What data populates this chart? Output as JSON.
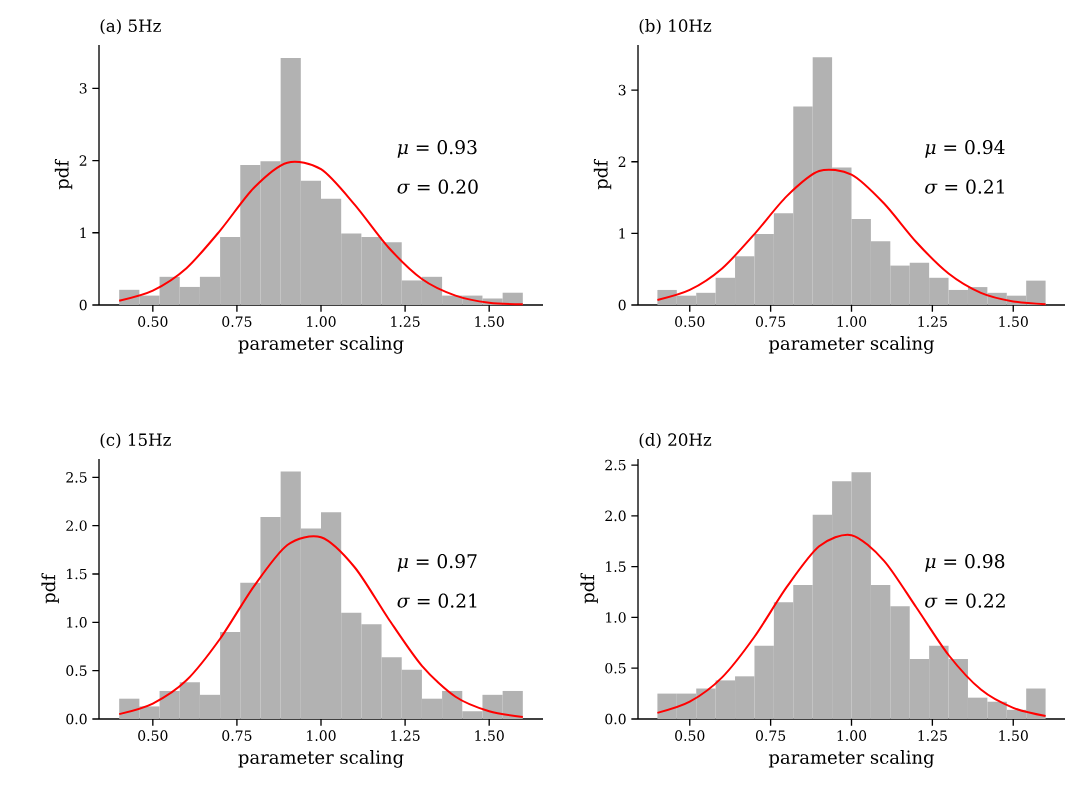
{
  "chart_data": [
    {
      "type": "histogram",
      "title": "(a) 5Hz",
      "xlabel": "parameter scaling",
      "ylabel": "pdf",
      "annotations": [
        "*μ* = 0.93",
        "*σ* = 0.20"
      ],
      "xlim": [
        0.34,
        1.66
      ],
      "ylim": [
        0,
        3.6
      ],
      "xticks": [
        {
          "value": 0.5,
          "label": "0.50"
        },
        {
          "value": 0.75,
          "label": "0.75"
        },
        {
          "value": 1.0,
          "label": "1.00"
        },
        {
          "value": 1.25,
          "label": "1.25"
        },
        {
          "value": 1.5,
          "label": "1.50"
        }
      ],
      "yticks": [
        0,
        1,
        2,
        3
      ],
      "series": [
        {
          "type": "histogram",
          "color": "#b2b2b2",
          "bins": [
            0.4,
            0.46,
            0.52,
            0.58,
            0.64,
            0.7,
            0.76,
            0.82,
            0.88,
            0.94,
            1.0,
            1.06,
            1.12,
            1.18,
            1.24,
            1.3,
            1.36,
            1.42,
            1.48,
            1.54,
            1.6
          ],
          "values": [
            0.21,
            0.13,
            0.39,
            0.25,
            0.39,
            0.94,
            1.94,
            1.99,
            3.42,
            1.72,
            1.47,
            0.99,
            0.94,
            0.87,
            0.34,
            0.39,
            0.13,
            0.13,
            0.09,
            0.17
          ]
        },
        {
          "type": "line",
          "color": "#ff0000",
          "x": [
            0.4,
            0.5,
            0.6,
            0.7,
            0.8,
            0.9,
            1.0,
            1.1,
            1.2,
            1.3,
            1.4,
            1.5,
            1.6
          ],
          "values": [
            0.06,
            0.2,
            0.51,
            1.03,
            1.62,
            1.97,
            1.88,
            1.39,
            0.8,
            0.36,
            0.13,
            0.03,
            0.01
          ]
        }
      ]
    },
    {
      "type": "histogram",
      "title": "(b) 10Hz",
      "xlabel": "parameter scaling",
      "ylabel": "pdf",
      "annotations": [
        "*μ* = 0.94",
        "*σ* = 0.21"
      ],
      "xlim": [
        0.34,
        1.66
      ],
      "ylim": [
        0,
        3.63
      ],
      "xticks": [
        {
          "value": 0.5,
          "label": "0.50"
        },
        {
          "value": 0.75,
          "label": "0.75"
        },
        {
          "value": 1.0,
          "label": "1.00"
        },
        {
          "value": 1.25,
          "label": "1.25"
        },
        {
          "value": 1.5,
          "label": "1.50"
        }
      ],
      "yticks": [
        0,
        1,
        2,
        3
      ],
      "series": [
        {
          "type": "histogram",
          "color": "#b2b2b2",
          "bins": [
            0.4,
            0.46,
            0.52,
            0.58,
            0.64,
            0.7,
            0.76,
            0.82,
            0.88,
            0.94,
            1.0,
            1.06,
            1.12,
            1.18,
            1.24,
            1.3,
            1.36,
            1.42,
            1.48,
            1.54,
            1.6
          ],
          "values": [
            0.21,
            0.13,
            0.17,
            0.38,
            0.68,
            0.99,
            1.28,
            2.77,
            3.46,
            1.92,
            1.2,
            0.89,
            0.55,
            0.59,
            0.38,
            0.21,
            0.25,
            0.17,
            0.13,
            0.34
          ]
        },
        {
          "type": "line",
          "color": "#ff0000",
          "x": [
            0.4,
            0.5,
            0.6,
            0.7,
            0.8,
            0.9,
            1.0,
            1.1,
            1.2,
            1.3,
            1.4,
            1.5,
            1.6
          ],
          "values": [
            0.07,
            0.21,
            0.51,
            0.99,
            1.52,
            1.87,
            1.82,
            1.42,
            0.88,
            0.44,
            0.17,
            0.05,
            0.01
          ]
        }
      ]
    },
    {
      "type": "histogram",
      "title": "(c) 15Hz",
      "xlabel": "parameter scaling",
      "ylabel": "pdf",
      "annotations": [
        "*μ* = 0.97",
        "*σ* = 0.21"
      ],
      "xlim": [
        0.34,
        1.66
      ],
      "ylim": [
        0,
        2.69
      ],
      "xticks": [
        {
          "value": 0.5,
          "label": "0.50"
        },
        {
          "value": 0.75,
          "label": "0.75"
        },
        {
          "value": 1.0,
          "label": "1.00"
        },
        {
          "value": 1.25,
          "label": "1.25"
        },
        {
          "value": 1.5,
          "label": "1.50"
        }
      ],
      "yticks": [
        {
          "value": 0,
          "label": "0.0"
        },
        0.5,
        {
          "value": 1,
          "label": "1.0"
        },
        1.5,
        {
          "value": 2,
          "label": "2.0"
        },
        2.5
      ],
      "series": [
        {
          "type": "histogram",
          "color": "#b2b2b2",
          "bins": [
            0.4,
            0.46,
            0.52,
            0.58,
            0.64,
            0.7,
            0.76,
            0.82,
            0.88,
            0.94,
            1.0,
            1.06,
            1.12,
            1.18,
            1.24,
            1.3,
            1.36,
            1.42,
            1.48,
            1.54,
            1.6
          ],
          "values": [
            0.21,
            0.13,
            0.29,
            0.38,
            0.25,
            0.9,
            1.41,
            2.09,
            2.56,
            1.97,
            2.14,
            1.1,
            0.98,
            0.64,
            0.51,
            0.21,
            0.29,
            0.08,
            0.25,
            0.29
          ]
        },
        {
          "type": "line",
          "color": "#ff0000",
          "x": [
            0.4,
            0.5,
            0.6,
            0.7,
            0.8,
            0.9,
            1.0,
            1.1,
            1.2,
            1.3,
            1.4,
            1.5,
            1.6
          ],
          "values": [
            0.05,
            0.16,
            0.4,
            0.83,
            1.37,
            1.8,
            1.88,
            1.57,
            1.04,
            0.55,
            0.23,
            0.08,
            0.02
          ]
        }
      ]
    },
    {
      "type": "histogram",
      "title": "(d) 20Hz",
      "xlabel": "parameter scaling",
      "ylabel": "pdf",
      "annotations": [
        "*μ* = 0.98",
        "*σ* = 0.22"
      ],
      "xlim": [
        0.34,
        1.66
      ],
      "ylim": [
        0,
        2.56
      ],
      "xticks": [
        {
          "value": 0.5,
          "label": "0.50"
        },
        {
          "value": 0.75,
          "label": "0.75"
        },
        {
          "value": 1.0,
          "label": "1.00"
        },
        {
          "value": 1.25,
          "label": "1.25"
        },
        {
          "value": 1.5,
          "label": "1.50"
        }
      ],
      "yticks": [
        {
          "value": 0,
          "label": "0.0"
        },
        0.5,
        {
          "value": 1,
          "label": "1.0"
        },
        1.5,
        {
          "value": 2,
          "label": "2.0"
        },
        2.5
      ],
      "series": [
        {
          "type": "histogram",
          "color": "#b2b2b2",
          "bins": [
            0.4,
            0.46,
            0.52,
            0.58,
            0.64,
            0.7,
            0.76,
            0.82,
            0.88,
            0.94,
            1.0,
            1.06,
            1.12,
            1.18,
            1.24,
            1.3,
            1.36,
            1.42,
            1.48,
            1.54,
            1.6
          ],
          "values": [
            0.25,
            0.25,
            0.3,
            0.38,
            0.42,
            0.72,
            1.15,
            1.32,
            2.01,
            2.34,
            2.43,
            1.32,
            1.11,
            0.59,
            0.72,
            0.59,
            0.21,
            0.17,
            0.09,
            0.3
          ]
        },
        {
          "type": "line",
          "color": "#ff0000",
          "x": [
            0.4,
            0.5,
            0.6,
            0.7,
            0.8,
            0.9,
            1.0,
            1.1,
            1.2,
            1.3,
            1.4,
            1.5,
            1.6
          ],
          "values": [
            0.06,
            0.17,
            0.41,
            0.81,
            1.3,
            1.7,
            1.81,
            1.56,
            1.1,
            0.63,
            0.29,
            0.11,
            0.03
          ]
        }
      ]
    }
  ]
}
